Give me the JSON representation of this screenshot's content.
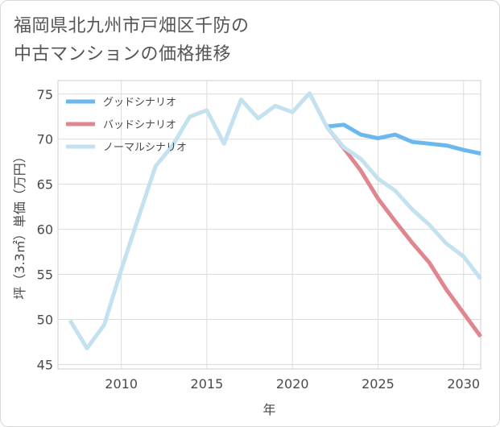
{
  "title_lines": [
    "福岡県北九州市戸畑区千防の",
    "中古マンションの価格推移"
  ],
  "chart_data": {
    "type": "line",
    "title": "福岡県北九州市戸畑区千防の中古マンションの価格推移",
    "xlabel": "年",
    "ylabel": "坪（3.3㎡）単価（万円）",
    "xlim": [
      2006.3,
      2031
    ],
    "ylim": [
      44.5,
      76.5
    ],
    "xticks": [
      2010,
      2015,
      2020,
      2025,
      2030
    ],
    "yticks": [
      45,
      50,
      55,
      60,
      65,
      70,
      75
    ],
    "grid": true,
    "legend_position": "top-left",
    "series": [
      {
        "name": "グッドシナリオ",
        "color": "#6ab8ee",
        "x": [
          2022,
          2023,
          2024,
          2025,
          2026,
          2027,
          2028,
          2029,
          2030,
          2031
        ],
        "y": [
          71.4,
          71.6,
          70.5,
          70.1,
          70.5,
          69.7,
          69.5,
          69.3,
          68.8,
          68.4
        ]
      },
      {
        "name": "バッドシナリオ",
        "color": "#e0868f",
        "x": [
          2022,
          2023,
          2024,
          2025,
          2026,
          2027,
          2028,
          2029,
          2030,
          2031
        ],
        "y": [
          71.4,
          69.0,
          66.5,
          63.4,
          60.9,
          58.5,
          56.3,
          53.3,
          50.7,
          48.1
        ]
      },
      {
        "name": "ノーマルシナリオ",
        "color": "#c3e1ee",
        "x": [
          2007,
          2008,
          2009,
          2010,
          2011,
          2012,
          2013,
          2014,
          2015,
          2016,
          2017,
          2018,
          2019,
          2020,
          2021,
          2022,
          2023,
          2024,
          2025,
          2026,
          2027,
          2028,
          2029,
          2030,
          2031
        ],
        "y": [
          49.9,
          46.8,
          49.4,
          55.5,
          61.3,
          67.0,
          69.3,
          72.5,
          73.2,
          69.5,
          74.4,
          72.3,
          73.7,
          73.0,
          75.1,
          71.4,
          69.1,
          67.8,
          65.6,
          64.3,
          62.2,
          60.5,
          58.4,
          57.0,
          54.5
        ]
      }
    ]
  }
}
